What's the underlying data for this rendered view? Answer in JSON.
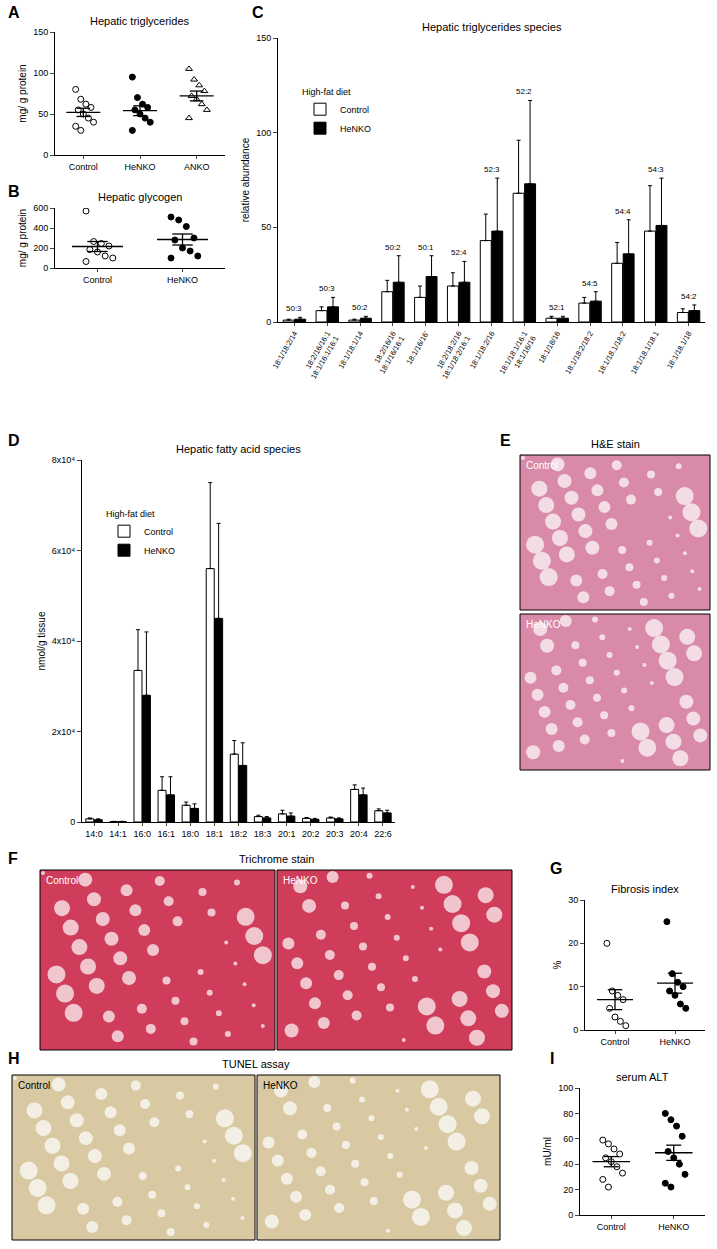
{
  "chart_data": [
    {
      "panel": "A",
      "type": "scatter",
      "title": "Hepatic triglycerides",
      "ylabel": "mg/ g protein",
      "categories": [
        "Control",
        "HeNKO",
        "ANKO"
      ],
      "groups": [
        {
          "values": [
            80,
            68,
            62,
            58,
            55,
            50,
            45,
            40,
            35,
            30
          ],
          "mean": 52,
          "sem": 5,
          "marker": "circle-open"
        },
        {
          "values": [
            95,
            70,
            62,
            58,
            55,
            50,
            45,
            40,
            30
          ],
          "mean": 54,
          "sem": 6,
          "marker": "circle"
        },
        {
          "values": [
            105,
            92,
            85,
            78,
            72,
            68,
            62,
            55,
            45
          ],
          "mean": 72,
          "sem": 6,
          "marker": "triangle-up-open"
        }
      ],
      "ylim": [
        0,
        150
      ],
      "yticks": [
        0,
        50,
        100,
        150
      ],
      "grid": false
    },
    {
      "panel": "B",
      "type": "scatter",
      "title": "Hepatic glycogen",
      "ylabel": "mg/ g protein",
      "categories": [
        "Control",
        "HeNKO"
      ],
      "groups": [
        {
          "values": [
            570,
            265,
            245,
            220,
            185,
            160,
            120,
            100,
            65
          ],
          "mean": 215,
          "sem": 50,
          "marker": "circle-open"
        },
        {
          "values": [
            510,
            480,
            415,
            300,
            280,
            200,
            170,
            120,
            100
          ],
          "mean": 285,
          "sem": 55,
          "marker": "circle"
        }
      ],
      "ylim": [
        0,
        600
      ],
      "yticks": [
        0,
        200,
        400,
        600
      ],
      "grid": false
    },
    {
      "panel": "C",
      "type": "bar",
      "title": "Hepatic triglycerides species",
      "ylabel": "relative abundance",
      "legend_title": "High-fat diet",
      "legend": "upper left",
      "categories": [
        "18:1/18:2/14",
        "18:2/16/16:1\n18:1/16:1/16:1",
        "18:1/18:1/14",
        "18:2/16/16\n18:1/16/16:1",
        "18:1/16/16'",
        "18:2/18:2/16\n18:1/18:2/16:1",
        "18:1/18:2/16",
        "18:1/18:1/16:1\n18:1/16/16",
        "18:1/18/16",
        "18:1/18:2/18:2",
        "18:1/18.1/18:2",
        "18:1/18.1/18.1",
        "18:1/18.1/18"
      ],
      "series": [
        {
          "name": "Control",
          "color": "#ffffff",
          "values": [
            1,
            6,
            1,
            16,
            13,
            19,
            43,
            68,
            2,
            10,
            31,
            48,
            5
          ],
          "errors": [
            0.5,
            2,
            0.5,
            6,
            6,
            7,
            14,
            28,
            1,
            3,
            11,
            24,
            2
          ]
        },
        {
          "name": "HeNKO",
          "color": "#000000",
          "values": [
            1.5,
            8,
            2,
            21,
            24,
            21,
            48,
            73,
            2,
            11,
            36,
            51,
            6
          ],
          "errors": [
            1,
            5,
            1,
            14,
            11,
            11,
            28,
            44,
            1,
            5,
            18,
            25,
            3
          ]
        }
      ],
      "annotations": [
        {
          "category": "18:1/18:2/14",
          "text": "50:3"
        },
        {
          "category": "18:2/16/16:1\n18:1/16:1/16:1",
          "text": "50:3"
        },
        {
          "category": "18:1/18:1/14",
          "text": "50:2"
        },
        {
          "category": "18:2/16/16\n18:1/16/16:1",
          "text": "50:2"
        },
        {
          "category": "18:1/16/16'",
          "text": "50:1"
        },
        {
          "category": "18:2/18:2/16\n18:1/18:2/16:1",
          "text": "52:4"
        },
        {
          "category": "18:1/18:2/16",
          "text": "52:3"
        },
        {
          "category": "18:1/18:1/16:1\n18:1/16/16",
          "text": "52:2"
        },
        {
          "category": "18:1/18/16",
          "text": "52:1"
        },
        {
          "category": "18:1/18:2/18:2",
          "text": "54:5"
        },
        {
          "category": "18:1/18.1/18:2",
          "text": "54:4"
        },
        {
          "category": "18:1/18.1/18.1",
          "text": "54:3"
        },
        {
          "category": "18:1/18.1/18",
          "text": "54:2"
        }
      ],
      "ylim": [
        0,
        150
      ],
      "yticks": [
        0,
        50,
        100,
        150
      ],
      "grid": false
    },
    {
      "panel": "D",
      "type": "bar",
      "title": "Hepatic fatty acid species",
      "ylabel": "nmol/g tissue",
      "legend_title": "High-fat diet",
      "legend": "upper left",
      "categories": [
        "14:0",
        "14:1",
        "16:0",
        "16:1",
        "18:0",
        "18:1",
        "18:2",
        "18:3",
        "20:1",
        "20:2",
        "20:3",
        "20:4",
        "22:6"
      ],
      "series": [
        {
          "name": "Control",
          "color": "#ffffff",
          "values": [
            700,
            100,
            33500,
            7000,
            3700,
            56000,
            15000,
            1200,
            1800,
            800,
            900,
            7200,
            2500
          ],
          "errors": [
            200,
            50,
            9000,
            3000,
            700,
            19000,
            3000,
            300,
            800,
            200,
            200,
            1000,
            400
          ]
        },
        {
          "name": "HeNKO",
          "color": "#000000",
          "values": [
            500,
            100,
            28000,
            6000,
            3000,
            45000,
            12500,
            900,
            1300,
            600,
            700,
            6000,
            2000
          ],
          "errors": [
            200,
            50,
            14000,
            4000,
            1000,
            21000,
            5000,
            300,
            700,
            200,
            200,
            1500,
            600
          ]
        }
      ],
      "ylim": [
        0,
        80000
      ],
      "yticks": [
        0,
        {
          "value": 20000,
          "label": "2x10⁴"
        },
        {
          "value": 40000,
          "label": "4x10⁴"
        },
        {
          "value": 60000,
          "label": "6x10⁴"
        },
        {
          "value": 80000,
          "label": "8x10⁴"
        }
      ],
      "grid": false
    },
    {
      "panel": "G",
      "type": "scatter",
      "title": "Fibrosis index",
      "ylabel": "%",
      "categories": [
        "Control",
        "HeNKO"
      ],
      "groups": [
        {
          "values": [
            20,
            9,
            8,
            7,
            5,
            3,
            2,
            1
          ],
          "mean": 7,
          "sem": 2.3,
          "marker": "circle-open"
        },
        {
          "values": [
            25,
            13,
            11,
            10,
            9,
            8,
            6,
            5
          ],
          "mean": 10.8,
          "sem": 2.3,
          "marker": "circle"
        }
      ],
      "ylim": [
        0,
        30
      ],
      "yticks": [
        0,
        10,
        20,
        30
      ],
      "grid": false
    },
    {
      "panel": "I",
      "type": "scatter",
      "title": "serum ALT",
      "ylabel": "mU/ml",
      "categories": [
        "Control",
        "HeNKO"
      ],
      "groups": [
        {
          "values": [
            59,
            56,
            52,
            48,
            45,
            42,
            38,
            33,
            28,
            22
          ],
          "mean": 42,
          "sem": 4,
          "marker": "circle-open"
        },
        {
          "values": [
            80,
            75,
            70,
            62,
            50,
            45,
            40,
            32,
            25,
            22
          ],
          "mean": 49,
          "sem": 6,
          "marker": "circle"
        }
      ],
      "ylim": [
        0,
        100
      ],
      "yticks": [
        0,
        20,
        40,
        60,
        80,
        100
      ],
      "grid": false
    }
  ],
  "images": [
    {
      "panel": "E",
      "title": "H&E stain",
      "labels": [
        "Control",
        "HeNKO"
      ]
    },
    {
      "panel": "F",
      "title": "Trichrome stain",
      "labels": [
        "Control",
        "HeNKO"
      ]
    },
    {
      "panel": "H",
      "title": "TUNEL assay",
      "labels": [
        "Control",
        "HeNKO"
      ]
    }
  ]
}
